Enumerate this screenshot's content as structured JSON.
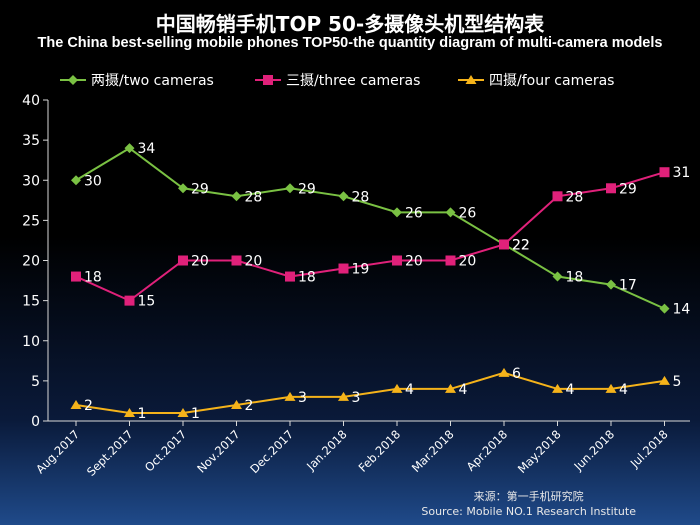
{
  "chart_data": {
    "type": "line",
    "title": "中国畅销手机TOP 50-多摄像头机型结构表",
    "subtitle": "The China best-selling mobile phones TOP50-the quantity diagram of multi-camera models",
    "categories": [
      "Aug.2017",
      "Sept.2017",
      "Oct.2017",
      "Nov.2017",
      "Dec.2017",
      "Jan.2018",
      "Feb.2018",
      "Mar.2018",
      "Apr.2018",
      "May.2018",
      "Jun.2018",
      "Jul.2018"
    ],
    "series": [
      {
        "name": "两摄/two cameras",
        "color": "#7ac143",
        "marker": "diamond",
        "values": [
          30,
          34,
          29,
          28,
          29,
          28,
          26,
          26,
          22,
          18,
          17,
          14
        ]
      },
      {
        "name": "三摄/three cameras",
        "color": "#e0217a",
        "marker": "square",
        "values": [
          18,
          15,
          20,
          20,
          18,
          19,
          20,
          20,
          22,
          28,
          29,
          31
        ]
      },
      {
        "name": "四摄/four cameras",
        "color": "#f5b31a",
        "marker": "triangle",
        "values": [
          2,
          1,
          1,
          2,
          3,
          3,
          4,
          4,
          6,
          4,
          4,
          5
        ]
      }
    ],
    "ylim": [
      0,
      40
    ],
    "yticks": [
      0,
      5,
      10,
      15,
      20,
      25,
      30,
      35,
      40
    ],
    "xlabel": "",
    "ylabel": "",
    "grid": false,
    "legend": "top"
  },
  "source": {
    "line1": "来源：第一手机研究院",
    "line2": "Source: Mobile NO.1 Research Institute"
  }
}
